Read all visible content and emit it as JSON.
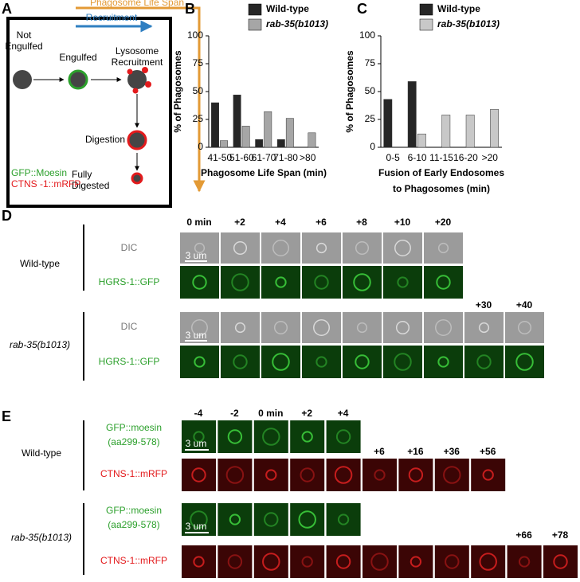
{
  "panel_labels": [
    "A",
    "B",
    "C",
    "D",
    "E"
  ],
  "panel_a": {
    "life_span_label": "Phagosome Life Span",
    "recruitment_label": "Recruitment",
    "stages": [
      [
        "Not",
        "Engulfed"
      ],
      [
        "Engulfed"
      ],
      [
        "Lysosome",
        "Recruitment"
      ],
      [
        "Digestion"
      ],
      [
        "Fully",
        "Digested"
      ]
    ],
    "legend": [
      "GFP::Moesin",
      "CTNS -1::mRFP"
    ]
  },
  "chart_data": [
    {
      "type": "bar",
      "categories": [
        "41-50",
        "51-60",
        "61-70",
        "71-80",
        ">80"
      ],
      "series": [
        {
          "name": "Wild-type",
          "color": "#262626",
          "values": [
            40,
            47,
            7,
            7,
            0
          ]
        },
        {
          "name": "rab-35(b1013)",
          "color": "#a6a6a6",
          "values": [
            6,
            19,
            32,
            26,
            13
          ]
        }
      ],
      "ylim": [
        0,
        100
      ],
      "yticks": [
        0,
        25,
        50,
        75,
        100
      ],
      "y_label": "% of Phagosomes",
      "x_label": [
        "Phagosome Life Span (min)"
      ]
    },
    {
      "type": "bar",
      "categories": [
        "0-5",
        "6-10",
        "11-15",
        "16-20",
        ">20"
      ],
      "series": [
        {
          "name": "Wild-type",
          "color": "#262626",
          "values": [
            43,
            59,
            0,
            0,
            0
          ]
        },
        {
          "name": "rab-35(b1013)",
          "color": "#c8c8c8",
          "values": [
            0,
            12,
            29,
            29,
            34
          ]
        }
      ],
      "ylim": [
        0,
        100
      ],
      "yticks": [
        0,
        25,
        50,
        75,
        100
      ],
      "y_label": "% of Phagosomes",
      "x_label": [
        "Fusion of Early Endosomes",
        "to Phagosomes (min)"
      ]
    }
  ],
  "panel_d": {
    "time_labels": [
      "0 min",
      "+2",
      "+4",
      "+6",
      "+8",
      "+10",
      "+20",
      "+30",
      "+40"
    ],
    "genotypes": [
      "Wild-type",
      "rab-35(b1013)"
    ],
    "channels": [
      "DIC",
      "HGRS-1::GFP"
    ],
    "scale_bar": "3 um"
  },
  "panel_e": {
    "time_labels": [
      "-4",
      "-2",
      "0 min",
      "+2",
      "+4",
      "+6",
      "+16",
      "+36",
      "+56",
      "+66",
      "+78"
    ],
    "genotypes": [
      "Wild-type",
      "rab-35(b1013)"
    ],
    "gfp_channel": [
      "GFP::moesin",
      "(aa299-578)"
    ],
    "rfp_channel": "CTNS-1::mRFP",
    "scale_bar": "3 um"
  }
}
